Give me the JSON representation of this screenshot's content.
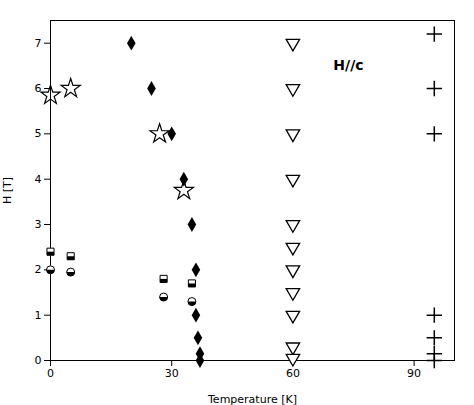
{
  "chart_data": {
    "type": "scatter",
    "xlabel": "Temperature [K]",
    "ylabel": "H [T]",
    "xlim": [
      0,
      100
    ],
    "ylim": [
      0,
      7.5
    ],
    "xticks": [
      0,
      30,
      60,
      90
    ],
    "yticks": [
      0,
      1,
      2,
      3,
      4,
      5,
      6,
      7
    ],
    "annotations": [
      {
        "text": "H//c",
        "x": 70,
        "y": 6.5
      }
    ],
    "series": [
      {
        "marker": "diamond",
        "color": "black",
        "x": [
          20,
          25,
          30,
          33,
          35,
          36,
          36,
          36.5,
          37,
          37
        ],
        "values": [
          7.0,
          6.0,
          5.0,
          4.0,
          3.0,
          2.0,
          1.0,
          0.5,
          0.15,
          0.0
        ]
      },
      {
        "marker": "open_star",
        "color": "black",
        "x": [
          0,
          5,
          27,
          33
        ],
        "values": [
          5.85,
          6.0,
          5.0,
          3.75
        ]
      },
      {
        "marker": "half_square",
        "color": "black",
        "x": [
          0,
          5,
          28,
          35
        ],
        "values": [
          2.4,
          2.3,
          1.8,
          1.7
        ]
      },
      {
        "marker": "half_circle",
        "color": "black",
        "x": [
          0,
          5,
          28,
          35
        ],
        "values": [
          2.0,
          1.95,
          1.4,
          1.3
        ]
      },
      {
        "marker": "open_triangle_down",
        "color": "black",
        "x": [
          60,
          60,
          60,
          60,
          60,
          60,
          60,
          60,
          60,
          60,
          60
        ],
        "values": [
          7.0,
          6.0,
          5.0,
          4.0,
          3.0,
          2.5,
          2.0,
          1.5,
          1.0,
          0.3,
          0.05
        ]
      },
      {
        "marker": "plus",
        "color": "black",
        "x": [
          95,
          95,
          95,
          95,
          95,
          95,
          95
        ],
        "values": [
          7.2,
          6.0,
          5.0,
          1.0,
          0.5,
          0.15,
          0.0
        ]
      }
    ]
  }
}
